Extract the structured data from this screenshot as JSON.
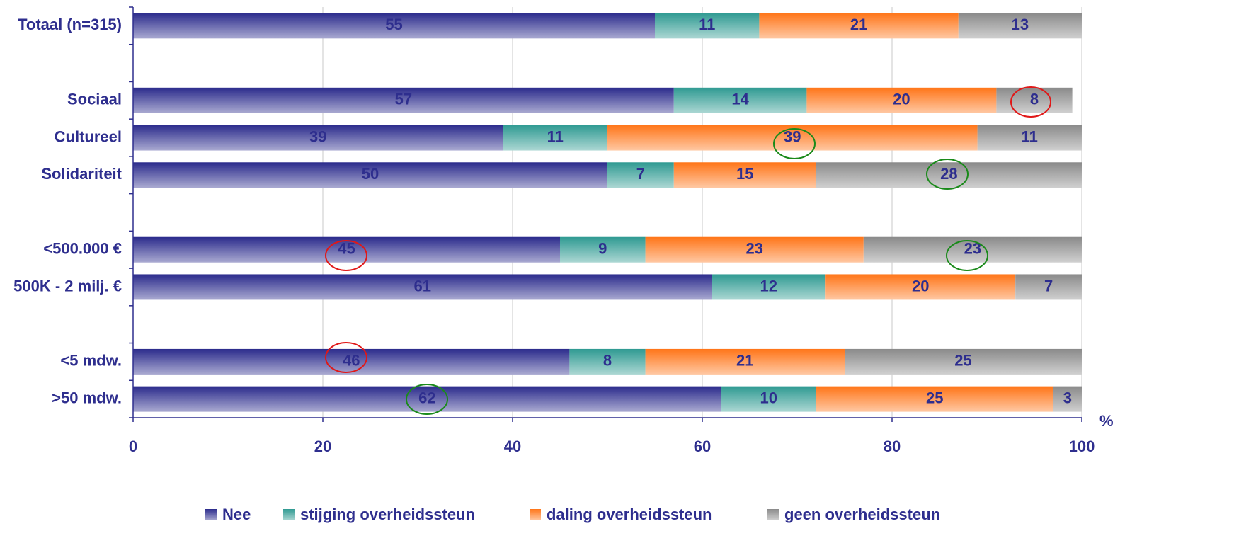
{
  "chart_data": {
    "type": "stacked-barh",
    "xlabel": "%",
    "categories": [
      "Totaal (n=315)",
      null,
      "Sociaal",
      "Cultureel",
      "Solidariteit",
      null,
      "<500.000 €",
      "500K - 2 milj. €",
      null,
      "<5 mdw.",
      ">50 mdw."
    ],
    "series": [
      {
        "name": "Nee",
        "color": "#2b2b8c",
        "values": [
          55,
          null,
          57,
          39,
          50,
          null,
          45,
          61,
          null,
          46,
          62
        ]
      },
      {
        "name": "stijging overheidssteun",
        "color": "#2f9a92",
        "values": [
          11,
          null,
          14,
          11,
          7,
          null,
          9,
          12,
          null,
          8,
          10
        ]
      },
      {
        "name": "daling overheidssteun",
        "color": "#ff7518",
        "values": [
          21,
          null,
          20,
          39,
          15,
          null,
          23,
          20,
          null,
          21,
          25
        ]
      },
      {
        "name": "geen overheidssteun",
        "color": "#8a8a8a",
        "values": [
          13,
          null,
          8,
          11,
          28,
          null,
          23,
          7,
          null,
          25,
          3
        ]
      }
    ],
    "xlim": [
      0,
      100
    ],
    "xticks": [
      0,
      20,
      40,
      60,
      80,
      100
    ],
    "grid": true,
    "legend": "bottom"
  }
}
